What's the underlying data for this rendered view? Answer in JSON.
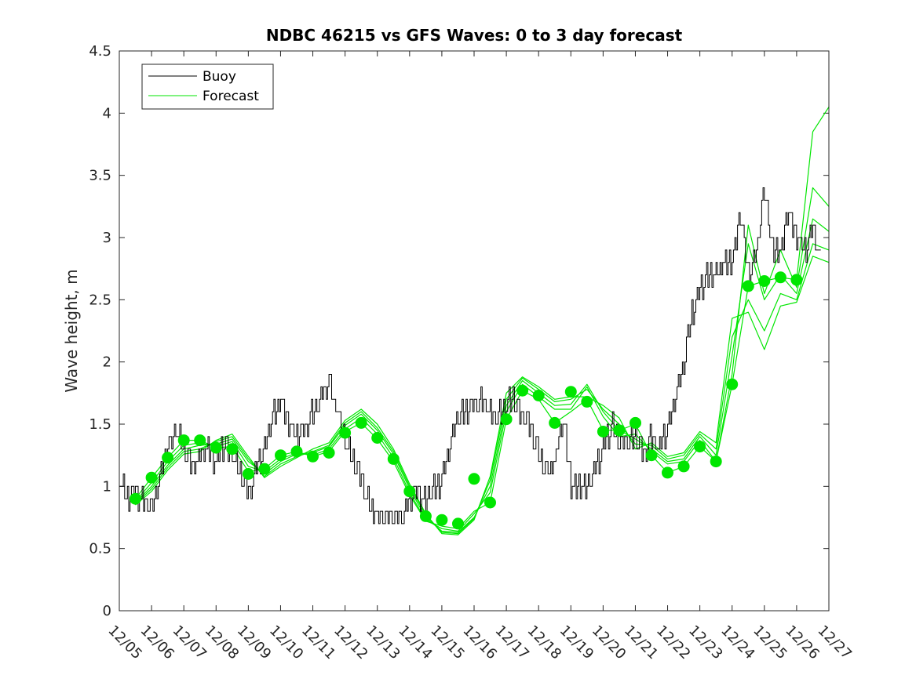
{
  "chart_data": {
    "type": "line",
    "title": "NDBC 46215 vs GFS Waves: 0 to 3 day forecast",
    "xlabel": "",
    "ylabel": "Wave height, m",
    "ylim": [
      0,
      4.5
    ],
    "yticks": [
      0,
      0.5,
      1,
      1.5,
      2,
      2.5,
      3,
      3.5,
      4,
      4.5
    ],
    "ytick_labels": [
      "0",
      "0.5",
      "1",
      "1.5",
      "2",
      "2.5",
      "3",
      "3.5",
      "4",
      "4.5"
    ],
    "xlim": [
      0,
      22
    ],
    "x_units": "days since 12/05",
    "xtick_labels": [
      "12/05",
      "12/06",
      "12/07",
      "12/08",
      "12/09",
      "12/10",
      "12/11",
      "12/12",
      "12/13",
      "12/14",
      "12/15",
      "12/16",
      "12/17",
      "12/18",
      "12/19",
      "12/20",
      "12/21",
      "12/22",
      "12/23",
      "12/24",
      "12/25",
      "12/26",
      "12/27"
    ],
    "legend": {
      "placement": "top-left",
      "entries": [
        "Buoy",
        "Forecast"
      ]
    },
    "colors": {
      "buoy": "#000000",
      "forecast": "#00e600"
    },
    "buoy_series": {
      "name": "Buoy",
      "x": [
        0,
        0.25,
        0.5,
        0.75,
        1,
        1.25,
        1.5,
        1.75,
        2,
        2.25,
        2.5,
        2.75,
        3,
        3.25,
        3.5,
        3.75,
        4,
        4.25,
        4.5,
        4.75,
        5,
        5.25,
        5.5,
        5.75,
        6,
        6.25,
        6.5,
        6.75,
        7,
        7.25,
        7.5,
        7.75,
        8,
        8.25,
        8.5,
        8.75,
        9,
        9.25,
        9.5,
        9.75,
        10,
        10.25,
        10.5,
        10.75,
        11,
        11.25,
        11.5,
        11.75,
        12,
        12.25,
        12.5,
        12.75,
        13,
        13.25,
        13.5,
        13.75,
        14,
        14.25,
        14.5,
        14.75,
        15,
        15.25,
        15.5,
        15.75,
        16,
        16.25,
        16.5,
        16.75,
        17,
        17.25,
        17.5,
        17.75,
        18,
        18.25,
        18.5,
        18.75,
        19,
        19.25,
        19.5,
        19.75,
        20,
        20.25,
        20.5,
        20.75,
        21,
        21.25,
        21.5,
        21.75
      ],
      "y": [
        1.05,
        0.9,
        0.95,
        0.85,
        0.85,
        1.05,
        1.3,
        1.45,
        1.3,
        1.15,
        1.25,
        1.3,
        1.2,
        1.35,
        1.25,
        1.1,
        0.95,
        1.15,
        1.3,
        1.55,
        1.7,
        1.5,
        1.4,
        1.45,
        1.6,
        1.7,
        1.85,
        1.6,
        1.35,
        1.2,
        1.05,
        0.85,
        0.75,
        0.75,
        0.75,
        0.75,
        0.9,
        0.95,
        0.9,
        1.0,
        1.05,
        1.35,
        1.55,
        1.6,
        1.65,
        1.7,
        1.6,
        1.55,
        1.65,
        1.7,
        1.55,
        1.5,
        1.25,
        1.1,
        1.2,
        1.55,
        1.0,
        1.0,
        1.0,
        1.15,
        1.3,
        1.5,
        1.35,
        1.35,
        1.4,
        1.25,
        1.4,
        1.3,
        1.5,
        1.7,
        2.0,
        2.4,
        2.6,
        2.7,
        2.7,
        2.8,
        2.8,
        3.2,
        2.7,
        2.9,
        3.4,
        2.9,
        2.9,
        3.2,
        3.0,
        2.9,
        3.1,
        2.8
      ]
    },
    "forecast_markers": {
      "name": "Forecast",
      "x": [
        0.5,
        1,
        1.5,
        2,
        2.5,
        3,
        3.5,
        4,
        4.5,
        5,
        5.5,
        6,
        6.5,
        7,
        7.5,
        8,
        8.5,
        9,
        9.5,
        10,
        10.5,
        11,
        11.5,
        12,
        12.5,
        13,
        13.5,
        14,
        14.5,
        15,
        15.5,
        16,
        16.5,
        17,
        17.5,
        18,
        18.5,
        19,
        19.5,
        20,
        20.5,
        21
      ],
      "y": [
        0.9,
        1.07,
        1.23,
        1.37,
        1.37,
        1.31,
        1.3,
        1.1,
        1.14,
        1.25,
        1.28,
        1.24,
        1.27,
        1.43,
        1.51,
        1.39,
        1.22,
        0.96,
        0.76,
        0.73,
        0.7,
        1.06,
        0.87,
        1.54,
        1.77,
        1.73,
        1.51,
        1.76,
        1.68,
        1.44,
        1.45,
        1.51,
        1.25,
        1.11,
        1.16,
        1.32,
        1.2,
        1.82,
        2.61,
        2.65,
        2.68,
        2.66
      ]
    },
    "forecast_runs": [
      {
        "name": "run-1",
        "x": [
          0.5,
          1,
          1.5,
          2,
          2.5,
          3,
          3.5,
          4,
          4.5,
          5,
          5.5,
          6,
          6.5,
          7,
          7.5,
          8,
          8.5,
          9,
          9.5,
          10,
          10.5,
          11,
          11.5,
          12,
          12.5,
          13,
          13.5,
          14,
          14.5,
          15,
          15.5,
          16,
          16.5,
          17,
          17.5,
          18,
          18.5,
          19,
          19.5,
          20,
          20.5,
          21,
          21.5,
          22
        ],
        "y": [
          0.9,
          1.07,
          1.23,
          1.37,
          1.37,
          1.31,
          1.32,
          1.12,
          1.14,
          1.25,
          1.28,
          1.24,
          1.28,
          1.44,
          1.51,
          1.38,
          1.2,
          0.93,
          0.72,
          0.68,
          0.66,
          0.8,
          0.87,
          1.54,
          1.77,
          1.7,
          1.51,
          1.6,
          1.7,
          1.45,
          1.45,
          1.5,
          1.25,
          1.11,
          1.16,
          1.32,
          1.2,
          1.82,
          2.61,
          2.65,
          2.68,
          2.66,
          3.85,
          4.05
        ]
      },
      {
        "name": "run-2",
        "x": [
          0.5,
          1,
          1.5,
          2,
          2.5,
          3,
          3.5,
          4,
          4.5,
          5,
          5.5,
          6,
          6.5,
          7,
          7.5,
          8,
          8.5,
          9,
          9.5,
          10,
          10.5,
          11,
          11.5,
          12,
          12.5,
          13,
          13.5,
          14,
          14.5,
          15,
          15.5,
          16,
          16.5,
          17,
          17.5,
          18,
          18.5,
          19,
          19.5,
          20,
          20.5,
          21,
          21.5,
          22
        ],
        "y": [
          0.88,
          1.03,
          1.2,
          1.33,
          1.35,
          1.32,
          1.36,
          1.16,
          1.12,
          1.22,
          1.27,
          1.25,
          1.3,
          1.46,
          1.55,
          1.42,
          1.23,
          0.95,
          0.73,
          0.66,
          0.64,
          0.78,
          0.95,
          1.6,
          1.82,
          1.72,
          1.62,
          1.62,
          1.8,
          1.56,
          1.4,
          1.42,
          1.28,
          1.18,
          1.2,
          1.37,
          1.2,
          1.9,
          3.1,
          2.55,
          2.9,
          2.6,
          3.4,
          3.25
        ]
      },
      {
        "name": "run-3",
        "x": [
          0.5,
          1,
          1.5,
          2,
          2.5,
          3,
          3.5,
          4,
          4.5,
          5,
          5.5,
          6,
          6.5,
          7,
          7.5,
          8,
          8.5,
          9,
          9.5,
          10,
          10.5,
          11,
          11.5,
          12,
          12.5,
          13,
          13.5,
          14,
          14.5,
          15,
          15.5,
          16,
          16.5,
          17,
          17.5,
          18,
          18.5,
          19,
          19.5,
          20,
          20.5,
          21,
          21.5,
          22
        ],
        "y": [
          0.87,
          1.0,
          1.17,
          1.3,
          1.33,
          1.34,
          1.38,
          1.2,
          1.1,
          1.2,
          1.26,
          1.27,
          1.32,
          1.49,
          1.58,
          1.45,
          1.26,
          0.98,
          0.75,
          0.64,
          0.63,
          0.75,
          1.0,
          1.65,
          1.85,
          1.75,
          1.65,
          1.66,
          1.82,
          1.6,
          1.45,
          1.38,
          1.3,
          1.2,
          1.22,
          1.4,
          1.25,
          2.05,
          2.95,
          2.5,
          2.7,
          2.55,
          3.15,
          3.05
        ]
      },
      {
        "name": "run-4",
        "x": [
          0.5,
          1,
          1.5,
          2,
          2.5,
          3,
          3.5,
          4,
          4.5,
          5,
          5.5,
          6,
          6.5,
          7,
          7.5,
          8,
          8.5,
          9,
          9.5,
          10,
          10.5,
          11,
          11.5,
          12,
          12.5,
          13,
          13.5,
          14,
          14.5,
          15,
          15.5,
          16,
          16.5,
          17,
          17.5,
          18,
          18.5,
          19,
          19.5,
          20,
          20.5,
          21,
          21.5,
          22
        ],
        "y": [
          0.86,
          0.98,
          1.15,
          1.28,
          1.3,
          1.36,
          1.4,
          1.22,
          1.08,
          1.18,
          1.24,
          1.28,
          1.33,
          1.51,
          1.6,
          1.47,
          1.28,
          1.0,
          0.77,
          0.63,
          0.62,
          0.74,
          1.05,
          1.7,
          1.87,
          1.78,
          1.68,
          1.7,
          1.78,
          1.62,
          1.5,
          1.34,
          1.33,
          1.22,
          1.25,
          1.42,
          1.3,
          2.2,
          2.5,
          2.25,
          2.55,
          2.5,
          2.95,
          2.9
        ]
      },
      {
        "name": "run-5",
        "x": [
          0.5,
          1,
          1.5,
          2,
          2.5,
          3,
          3.5,
          4,
          4.5,
          5,
          5.5,
          6,
          6.5,
          7,
          7.5,
          8,
          8.5,
          9,
          9.5,
          10,
          10.5,
          11,
          11.5,
          12,
          12.5,
          13,
          13.5,
          14,
          14.5,
          15,
          15.5,
          16,
          16.5,
          17,
          17.5,
          18,
          18.5,
          19,
          19.5,
          20,
          20.5,
          21,
          21.5,
          22
        ],
        "y": [
          0.85,
          0.96,
          1.13,
          1.26,
          1.28,
          1.37,
          1.42,
          1.24,
          1.07,
          1.16,
          1.23,
          1.3,
          1.35,
          1.53,
          1.62,
          1.5,
          1.3,
          1.02,
          0.78,
          0.62,
          0.61,
          0.73,
          1.08,
          1.75,
          1.88,
          1.8,
          1.7,
          1.72,
          1.72,
          1.65,
          1.55,
          1.3,
          1.35,
          1.24,
          1.27,
          1.44,
          1.35,
          2.35,
          2.4,
          2.1,
          2.45,
          2.48,
          2.85,
          2.8
        ]
      }
    ]
  }
}
